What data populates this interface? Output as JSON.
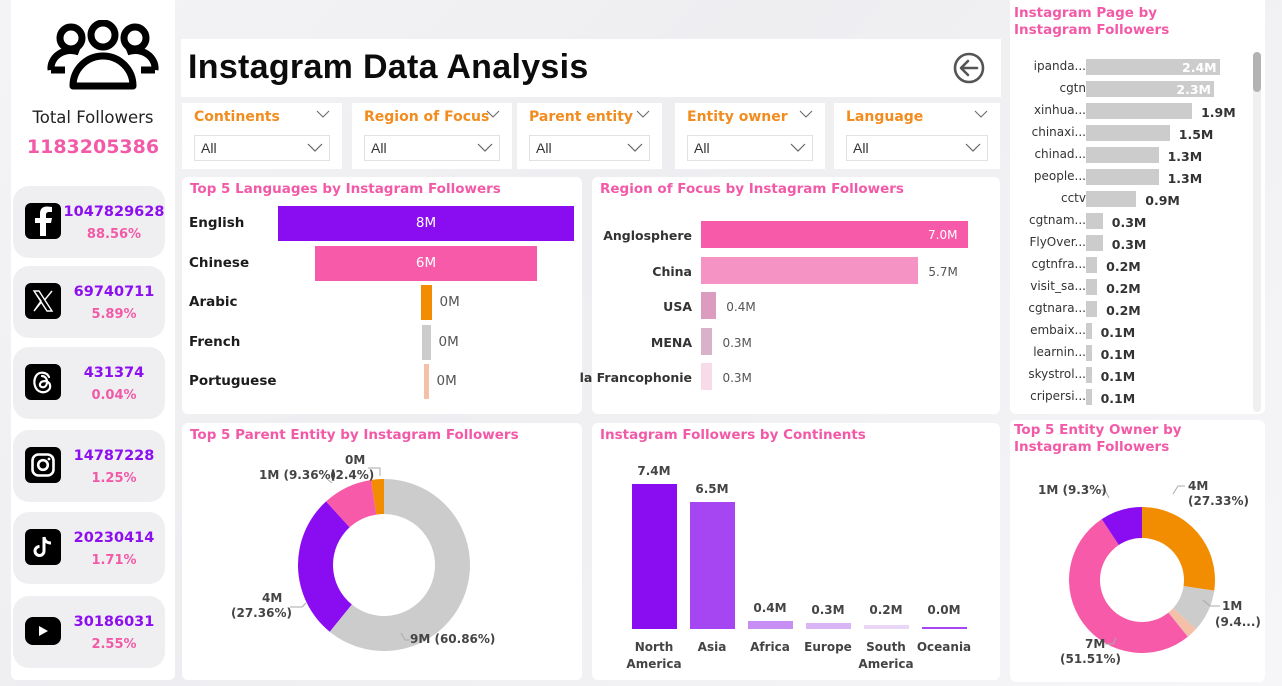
{
  "header": {
    "title": "Instagram Data Analysis",
    "back_icon": "circle-arrow-left-icon"
  },
  "sidebar": {
    "total_icon": "users-group-icon",
    "total_label": "Total Followers",
    "total_value": "1183205386",
    "platforms": [
      {
        "name": "Facebook",
        "icon": "facebook-icon",
        "value": "1047829628",
        "percent": "88.56%"
      },
      {
        "name": "X",
        "icon": "x-twitter-icon",
        "value": "69740711",
        "percent": "5.89%"
      },
      {
        "name": "Threads",
        "icon": "threads-icon",
        "value": "431374",
        "percent": "0.04%"
      },
      {
        "name": "Instagram",
        "icon": "instagram-icon",
        "value": "14787228",
        "percent": "1.25%"
      },
      {
        "name": "TikTok",
        "icon": "tiktok-icon",
        "value": "20230414",
        "percent": "1.71%"
      },
      {
        "name": "YouTube",
        "icon": "youtube-icon",
        "value": "30186031",
        "percent": "2.55%"
      }
    ]
  },
  "slicers": [
    {
      "title": "Continents",
      "value": "All"
    },
    {
      "title": "Region of Focus",
      "value": "All"
    },
    {
      "title": "Parent entity",
      "value": "All"
    },
    {
      "title": "Entity owner",
      "value": "All"
    },
    {
      "title": "Language",
      "value": "All"
    }
  ],
  "colors": {
    "purple": "#8a0cf0",
    "pink": "#f75aa8",
    "orange": "#f28c00",
    "gray": "#cccccc",
    "peach": "#f4c0a8",
    "title_pink": "#f25aa8",
    "slicer_orange": "#f28c1e"
  },
  "chart_data": [
    {
      "id": "languages",
      "type": "bar",
      "subtype": "funnel",
      "title": "Top 5 Languages by Instagram Followers",
      "categories": [
        "English",
        "Chinese",
        "Arabic",
        "French",
        "Portuguese"
      ],
      "values": [
        8.0,
        6.0,
        0.3,
        0.2,
        0.1
      ],
      "unit": "M",
      "data_labels": [
        "8M",
        "6M",
        "0M",
        "0M",
        "0M"
      ],
      "colors": [
        "#8a0cf0",
        "#f75aa8",
        "#f28c00",
        "#cccccc",
        "#f4c0a8"
      ]
    },
    {
      "id": "region",
      "type": "bar",
      "orientation": "horizontal",
      "title": "Region of Focus by Instagram Followers",
      "categories": [
        "Anglosphere",
        "China",
        "USA",
        "MENA",
        "la Francophonie"
      ],
      "values": [
        7.0,
        5.7,
        0.4,
        0.3,
        0.3
      ],
      "unit": "M",
      "data_labels": [
        "7.0M",
        "5.7M",
        "0.4M",
        "0.3M",
        "0.3M"
      ],
      "colors": [
        "#f75aa8",
        "#f593c4",
        "#dc9cc0",
        "#d8b2c8",
        "#f8dbe8"
      ]
    },
    {
      "id": "pages",
      "type": "bar",
      "orientation": "horizontal",
      "title": "Instagram Page by Instagram Followers",
      "categories": [
        "ipanda...",
        "cgtn",
        "xinhua...",
        "chinaxi...",
        "chinad...",
        "people...",
        "cctv",
        "cgtnam...",
        "FlyOver...",
        "cgtnfra...",
        "visit_sa...",
        "cgtnara...",
        "embaix...",
        "learnin...",
        "skystrol...",
        "cripersi..."
      ],
      "values": [
        2.4,
        2.3,
        1.9,
        1.5,
        1.3,
        1.3,
        0.9,
        0.3,
        0.3,
        0.2,
        0.2,
        0.2,
        0.1,
        0.1,
        0.1,
        0.1
      ],
      "unit": "M",
      "data_labels": [
        "2.4M",
        "2.3M",
        "1.9M",
        "1.5M",
        "1.3M",
        "1.3M",
        "0.9M",
        "0.3M",
        "0.3M",
        "0.2M",
        "0.2M",
        "0.2M",
        "0.1M",
        "0.1M",
        "0.1M",
        "0.1M"
      ]
    },
    {
      "id": "parent",
      "type": "pie",
      "subtype": "donut",
      "title": "Top 5 Parent Entity by Instagram Followers",
      "slices": [
        {
          "value": 60.86,
          "label": "9M (60.86%)",
          "color": "#cccccc"
        },
        {
          "value": 27.36,
          "label": "4M (27.36%)",
          "color": "#8a0cf0"
        },
        {
          "value": 9.36,
          "label": "1M (9.36%)",
          "color": "#f75aa8"
        },
        {
          "value": 2.4,
          "label": "0M (2.4%)",
          "color": "#f28c00"
        }
      ],
      "label_texts": {
        "gray": "9M (60.86%)",
        "purple_a": "4M",
        "purple_b": "(27.36%)",
        "pink": "1M (9.36%)",
        "orange_a": "0M",
        "orange_b": "(2.4%)"
      }
    },
    {
      "id": "continents",
      "type": "bar",
      "title": "Instagram Followers by Continents",
      "categories": [
        "North America",
        "Asia",
        "Africa",
        "Europe",
        "South America",
        "Oceania"
      ],
      "category_lines": [
        [
          "North",
          "America"
        ],
        [
          "Asia"
        ],
        [
          "Africa"
        ],
        [
          "Europe"
        ],
        [
          "South",
          "America"
        ],
        [
          "Oceania"
        ]
      ],
      "values": [
        7.4,
        6.5,
        0.4,
        0.3,
        0.2,
        0.02
      ],
      "unit": "M",
      "data_labels": [
        "7.4M",
        "6.5M",
        "0.4M",
        "0.3M",
        "0.2M",
        "0.0M"
      ],
      "colors": [
        "#8a0cf0",
        "#a646f2",
        "#c78ef3",
        "#dab5f5",
        "#ead7f8",
        "#a646f2"
      ],
      "ylim": [
        0,
        7.4
      ]
    },
    {
      "id": "owner",
      "type": "pie",
      "subtype": "donut",
      "title": "Top 5 Entity Owner by Instagram Followers",
      "slices": [
        {
          "value": 27.33,
          "label": "4M (27.33%)",
          "color": "#f28c00"
        },
        {
          "value": 9.4,
          "label": "1M (9.4...)",
          "color": "#cccccc"
        },
        {
          "value": 2.46,
          "label": "",
          "color": "#f4c0a8"
        },
        {
          "value": 51.51,
          "label": "7M (51.51%)",
          "color": "#f75aa8"
        },
        {
          "value": 9.3,
          "label": "1M (9.3%)",
          "color": "#8a0cf0"
        }
      ],
      "label_texts": {
        "orange_a": "4M",
        "orange_b": "(27.33%)",
        "gray_a": "1M",
        "gray_b": "(9.4...)",
        "pink_a": "7M",
        "pink_b": "(51.51%)",
        "purple": "1M (9.3%)"
      }
    }
  ]
}
